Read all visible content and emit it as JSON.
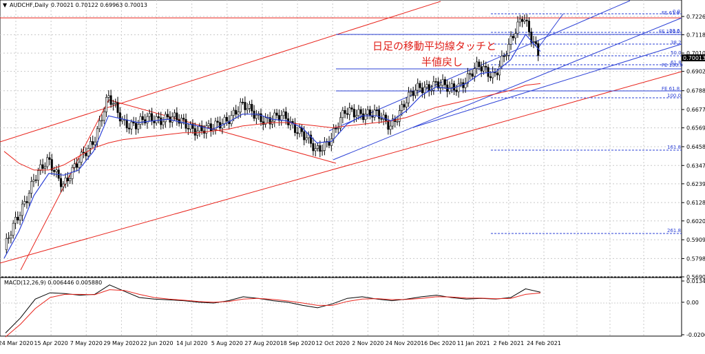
{
  "header": {
    "symbol_label": "AUDCHF,Daily",
    "ohlc": "0.70021 0.70122 0.69963 0.70013"
  },
  "annotation": {
    "line1": "日足の移動平均線タッチと",
    "line2": "半値戻し"
  },
  "chart_data": [
    {
      "type": "candlestick",
      "title": "AUDCHF,Daily",
      "ylim": [
        0.569,
        0.7315
      ],
      "price_ticks": [
        "0.72260",
        "0.71180",
        "0.70100",
        "0.69020",
        "0.67880",
        "0.66770",
        "0.65690",
        "0.64580",
        "0.63470",
        "0.62390",
        "0.61280",
        "0.60200",
        "0.59090",
        "0.57980",
        "0.56900"
      ],
      "current_price": "0.70013",
      "x_ticks": [
        "24 Mar 2020",
        "15 Apr 2020",
        "7 May 2020",
        "29 May 2020",
        "22 Jun 2020",
        "14 Jul 2020",
        "5 Aug 2020",
        "27 Aug 2020",
        "18 Sep 2020",
        "12 Oct 2020",
        "2 Nov 2020",
        "24 Nov 2020",
        "16 Dec 2020",
        "11 Jan 2021",
        "2 Feb 2021",
        "24 Feb 2021"
      ],
      "series": [
        {
          "name": "",
          "kind": "close_path",
          "values": [
            0.585,
            0.605,
            0.628,
            0.636,
            0.625,
            0.635,
            0.65,
            0.674,
            0.661,
            0.659,
            0.662,
            0.664,
            0.659,
            0.657,
            0.655,
            0.663,
            0.669,
            0.665,
            0.661,
            0.663,
            0.655,
            0.642,
            0.652,
            0.665,
            0.667,
            0.664,
            0.659,
            0.671,
            0.681,
            0.683,
            0.679,
            0.685,
            0.692,
            0.689,
            0.703,
            0.725,
            0.7
          ]
        },
        {
          "name": "",
          "kind": "ma_short",
          "values": [
            0.58,
            0.596,
            0.617,
            0.63,
            0.629,
            0.632,
            0.643,
            0.664,
            0.662,
            0.66,
            0.661,
            0.662,
            0.66,
            0.658,
            0.656,
            0.66,
            0.665,
            0.665,
            0.662,
            0.661,
            0.657,
            0.648,
            0.649,
            0.659,
            0.664,
            0.664,
            0.661,
            0.667,
            0.676,
            0.681,
            0.68,
            0.683,
            0.689,
            0.69,
            0.697,
            0.712,
            0.702
          ]
        },
        {
          "name": "",
          "kind": "ma_long",
          "values": [
            0.643,
            0.636,
            0.632,
            0.632,
            0.635,
            0.64,
            0.645,
            0.648,
            0.65,
            0.651,
            0.652,
            0.653,
            0.654,
            0.654,
            0.655,
            0.656,
            0.658,
            0.659,
            0.66,
            0.66,
            0.659,
            0.658,
            0.657,
            0.658,
            0.659,
            0.66,
            0.661,
            0.663,
            0.666,
            0.669,
            0.671,
            0.673,
            0.675,
            0.677,
            0.679,
            0.682,
            0.683
          ]
        }
      ],
      "fibonacci_labels": [
        "0.0",
        "FE 61.8",
        "FE 100.0",
        "23.6",
        "38.2",
        "50.0",
        "61.8",
        "FE 100.0",
        "FE 61.8",
        "100.0",
        "161.8",
        "261.8"
      ]
    },
    {
      "type": "line",
      "title": "MACD(12,26,9) 0.006446 0.005880",
      "ticks": [
        "0.013497",
        "0.00",
        "-0.020609"
      ],
      "ylim": [
        -0.020609,
        0.013497
      ],
      "series": [
        {
          "name": "",
          "kind": "macd",
          "values": [
            -0.0195,
            -0.01,
            0.002,
            0.006,
            0.0055,
            0.0045,
            0.005,
            0.011,
            0.007,
            0.003,
            0.002,
            0.0015,
            0.001,
            0.0,
            -0.0005,
            0.001,
            0.0035,
            0.0025,
            0.001,
            0.0,
            -0.002,
            -0.0035,
            -0.001,
            0.0025,
            0.0035,
            0.002,
            0.001,
            0.002,
            0.0035,
            0.0045,
            0.003,
            0.002,
            0.0025,
            0.002,
            0.003,
            0.0085,
            0.0064
          ]
        },
        {
          "name": "",
          "kind": "signal",
          "values": [
            -0.022,
            -0.014,
            -0.004,
            0.003,
            0.005,
            0.005,
            0.0048,
            0.008,
            0.0075,
            0.005,
            0.003,
            0.002,
            0.0013,
            0.0005,
            0.0,
            0.0005,
            0.002,
            0.0025,
            0.0018,
            0.0008,
            -0.0005,
            -0.002,
            -0.002,
            0.0005,
            0.002,
            0.0023,
            0.0017,
            0.0018,
            0.0025,
            0.0035,
            0.0033,
            0.0027,
            0.0026,
            0.0022,
            0.0025,
            0.005,
            0.0059
          ]
        }
      ]
    }
  ]
}
